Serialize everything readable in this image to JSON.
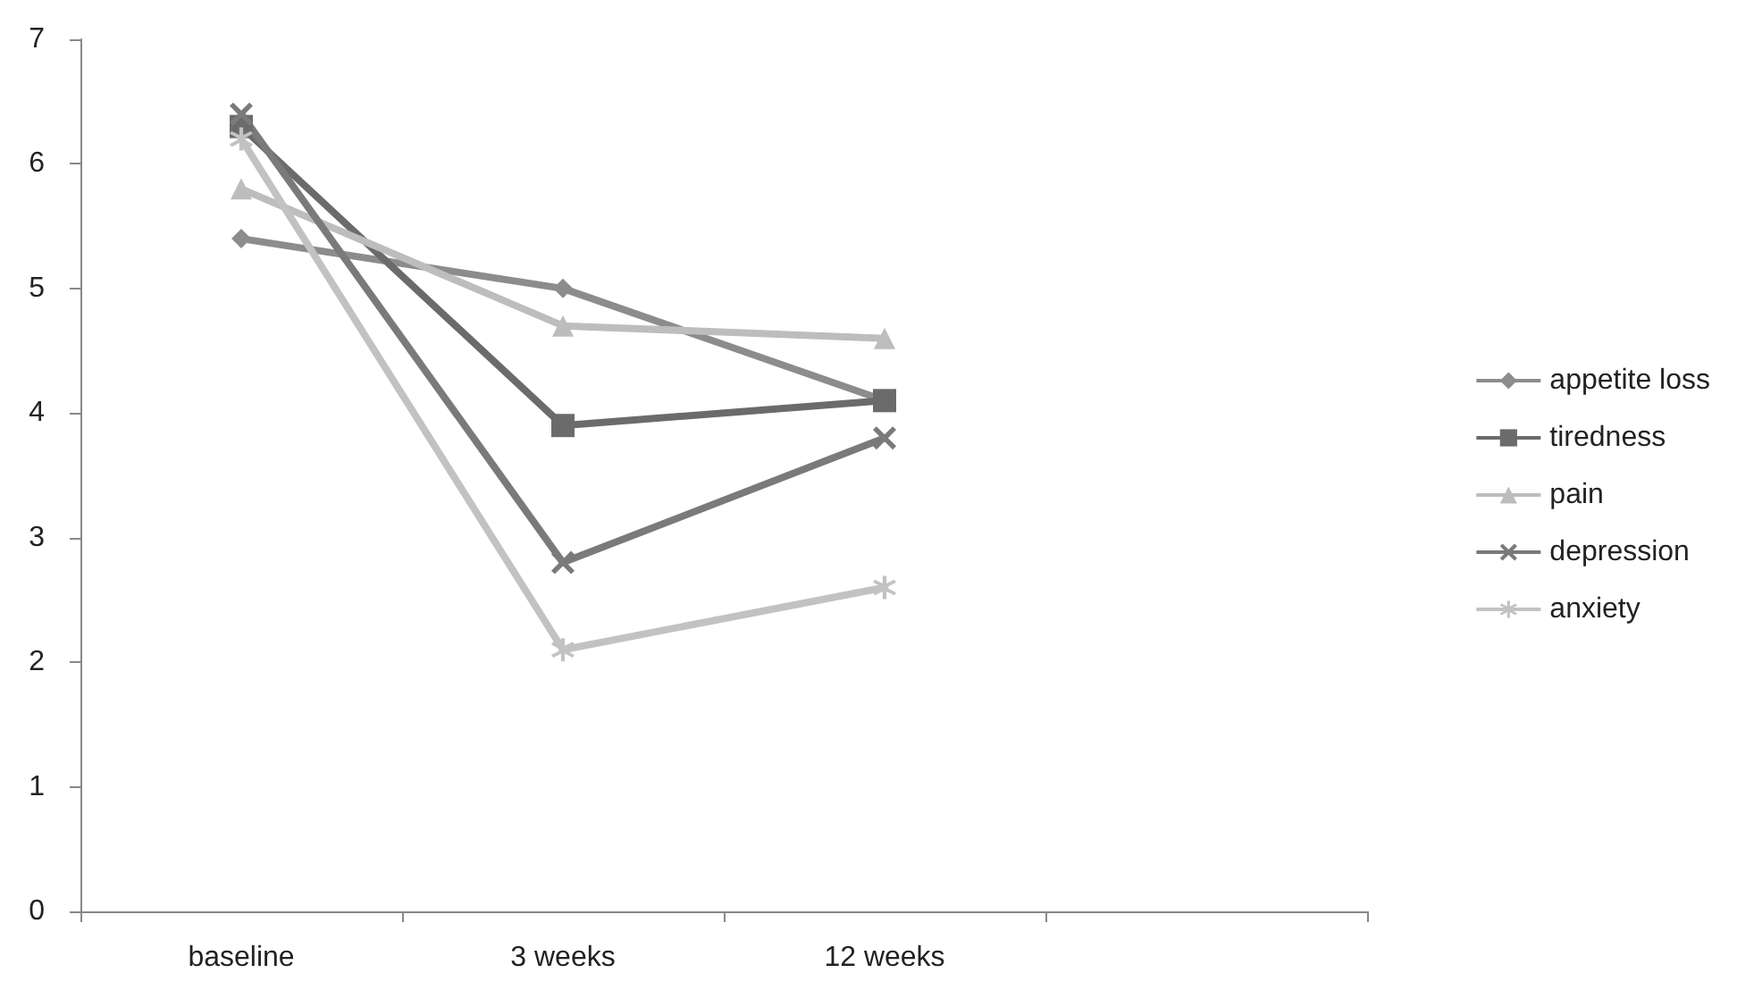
{
  "chart_data": {
    "type": "line",
    "categories": [
      "baseline",
      "3 weeks",
      "12 weeks",
      null
    ],
    "series": [
      {
        "name": "appetite loss",
        "color": "#8c8c8c",
        "marker": "diamond",
        "values": [
          5.4,
          5.0,
          4.1,
          null
        ]
      },
      {
        "name": "tiredness",
        "color": "#6b6b6b",
        "marker": "square",
        "values": [
          6.3,
          3.9,
          4.1,
          null
        ]
      },
      {
        "name": "pain",
        "color": "#bdbdbd",
        "marker": "triangle",
        "values": [
          5.8,
          4.7,
          4.6,
          null
        ]
      },
      {
        "name": "depression",
        "color": "#7a7a7a",
        "marker": "cross",
        "values": [
          6.4,
          2.8,
          3.8,
          null
        ]
      },
      {
        "name": "anxiety",
        "color": "#c2c2c2",
        "marker": "star",
        "values": [
          6.2,
          2.1,
          2.6,
          null
        ]
      }
    ],
    "ylim": [
      0,
      7
    ],
    "yticks": [
      0,
      1,
      2,
      3,
      4,
      5,
      6,
      7
    ],
    "grid": false,
    "legend": "right"
  }
}
